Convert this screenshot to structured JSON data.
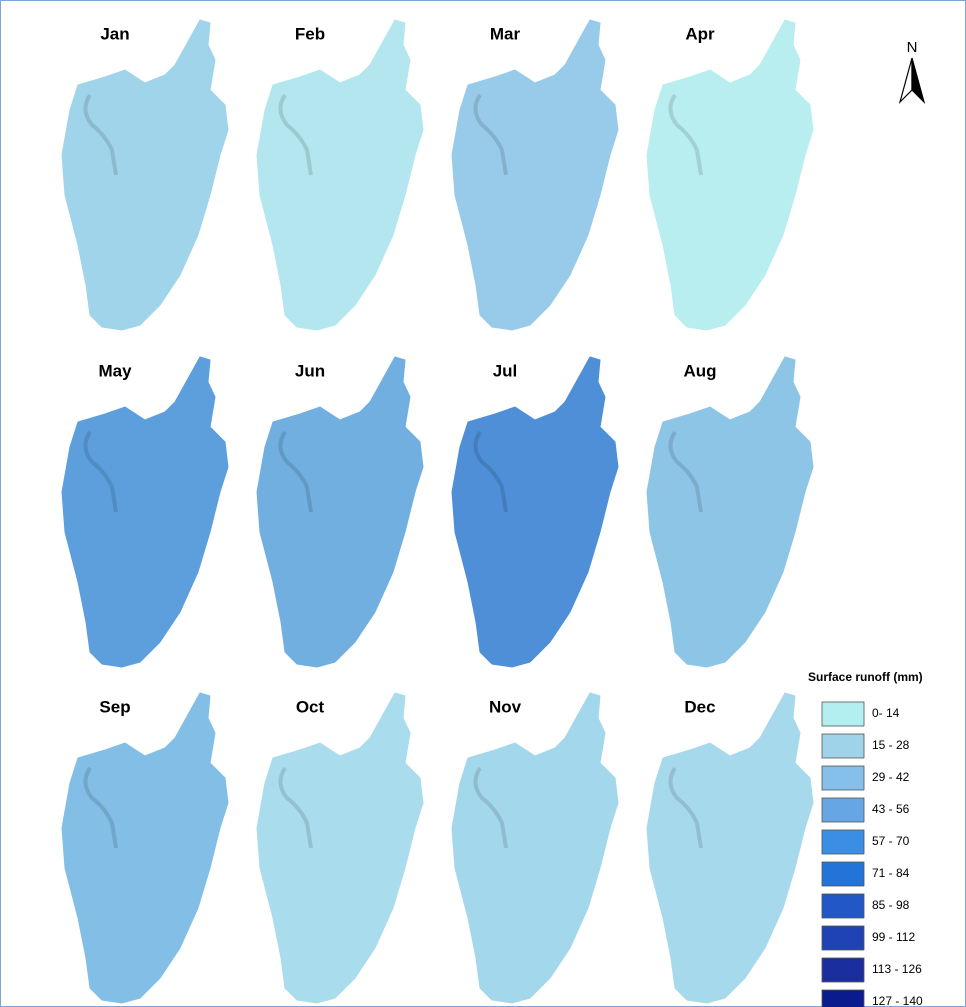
{
  "panels": [
    {
      "label": "Jan",
      "color": "#a0d4ea"
    },
    {
      "label": "Feb",
      "color": "#b3e6ee"
    },
    {
      "label": "Mar",
      "color": "#97cbe9"
    },
    {
      "label": "Apr",
      "color": "#b8eef0"
    },
    {
      "label": "May",
      "color": "#5c9fdc"
    },
    {
      "label": "Jun",
      "color": "#70afe0"
    },
    {
      "label": "Jul",
      "color": "#4e8fd7"
    },
    {
      "label": "Aug",
      "color": "#8cc5e6"
    },
    {
      "label": "Sep",
      "color": "#82bee5"
    },
    {
      "label": "Oct",
      "color": "#a9dcec"
    },
    {
      "label": "Nov",
      "color": "#a3d7eb"
    },
    {
      "label": "Dec",
      "color": "#a7d9ec"
    }
  ],
  "north_arrow": {
    "label": "N"
  },
  "legend": {
    "title": "Surface runoff (mm)",
    "items": [
      {
        "label": "0- 14",
        "color": "#b3eef0"
      },
      {
        "label": "15 - 28",
        "color": "#9fd3ea"
      },
      {
        "label": "29 - 42",
        "color": "#86bfe9"
      },
      {
        "label": "43 - 56",
        "color": "#66a6e4"
      },
      {
        "label": "57 - 70",
        "color": "#3a8ee4"
      },
      {
        "label": "71 - 84",
        "color": "#2274d8"
      },
      {
        "label": "85 - 98",
        "color": "#2257c8"
      },
      {
        "label": "99 - 112",
        "color": "#1f43b4"
      },
      {
        "label": "113 - 126",
        "color": "#1a2e9e"
      },
      {
        "label": "127 - 140",
        "color": "#0a1b8e"
      }
    ]
  }
}
